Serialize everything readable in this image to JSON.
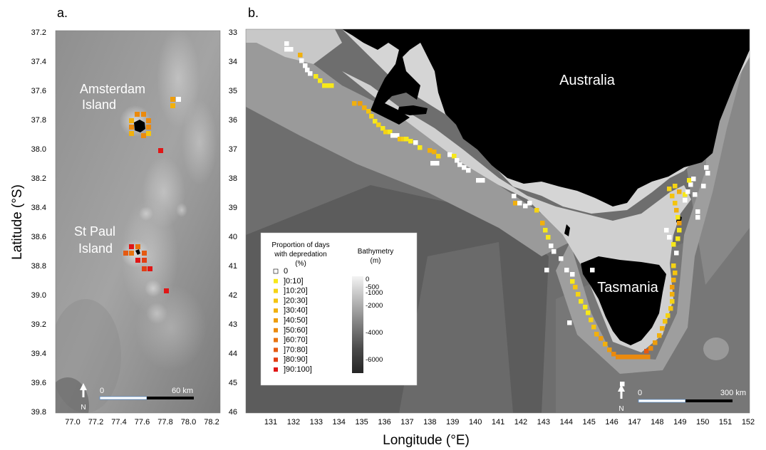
{
  "panel_a": {
    "label": "a.",
    "lat_ticks": [
      "37.2",
      "37.4",
      "37.6",
      "37.8",
      "38.0",
      "38.2",
      "38.4",
      "38.6",
      "38.8",
      "39.0",
      "39.2",
      "39.4",
      "39.6",
      "39.8"
    ],
    "lon_ticks": [
      "77.0",
      "77.2",
      "77.4",
      "77.6",
      "77.8",
      "78.0",
      "78.2"
    ],
    "island1_line1": "Amsterdam",
    "island1_line2": "Island",
    "island2_line1": "St Paul",
    "island2_line2": "Island",
    "scale_start": "0",
    "scale_end": "60 km",
    "north": "N"
  },
  "panel_b": {
    "label": "b.",
    "lat_ticks": [
      "33",
      "34",
      "35",
      "36",
      "37",
      "38",
      "39",
      "40",
      "41",
      "42",
      "43",
      "44",
      "45",
      "46"
    ],
    "lon_ticks": [
      "131",
      "132",
      "133",
      "134",
      "135",
      "136",
      "137",
      "138",
      "139",
      "140",
      "141",
      "142",
      "143",
      "144",
      "145",
      "146",
      "147",
      "148",
      "149",
      "150",
      "151",
      "152"
    ],
    "label_australia": "Australia",
    "label_tasmania": "Tasmania",
    "scale_start": "0",
    "scale_end": "300 km",
    "north": "N"
  },
  "axes": {
    "ylabel": "Latitude (°S)",
    "xlabel": "Longitude (°E)"
  },
  "legend": {
    "title_line1": "Proportion of days",
    "title_line2": "with depredation",
    "title_line3": "(%)",
    "items": [
      {
        "label": "0",
        "color": "#ffffff"
      },
      {
        "label": "]0:10]",
        "color": "#f7e81a"
      },
      {
        "label": "]10:20]",
        "color": "#f5d314"
      },
      {
        "label": "]20:30]",
        "color": "#f4c40f"
      },
      {
        "label": "]30:40]",
        "color": "#f1b00d"
      },
      {
        "label": "]40:50]",
        "color": "#ee9d0c"
      },
      {
        "label": "]50:60]",
        "color": "#eb8a0d"
      },
      {
        "label": "]60:70]",
        "color": "#e8730f"
      },
      {
        "label": "]70:80]",
        "color": "#e55a12"
      },
      {
        "label": "]80:90]",
        "color": "#e23e14"
      },
      {
        "label": "]90:100]",
        "color": "#e01616"
      }
    ],
    "bathy_title_line1": "Bathymetry",
    "bathy_title_line2": "(m)",
    "bathy_ticks": [
      "0",
      "-500",
      "-1000",
      "-2000",
      "-4000",
      "-6000"
    ]
  }
}
